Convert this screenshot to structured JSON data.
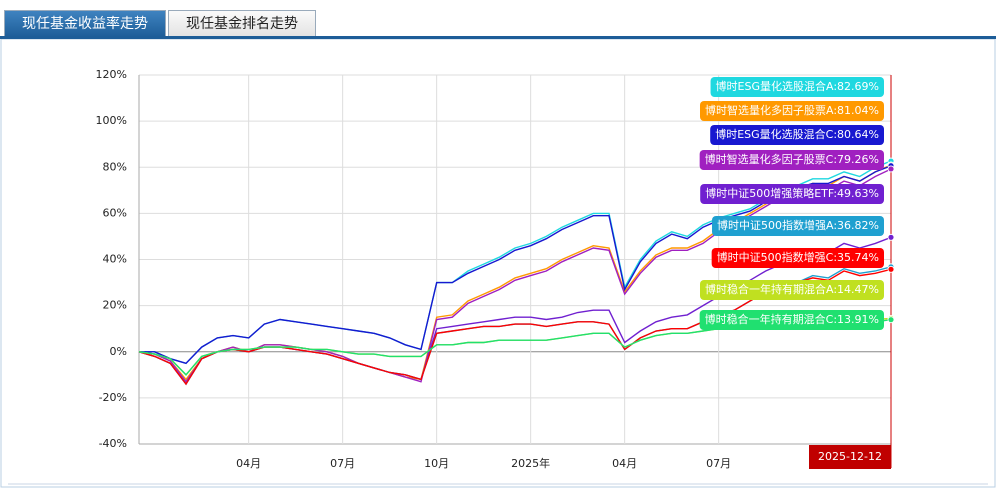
{
  "tabs": [
    {
      "label": "现任基金收益率走势",
      "active": true
    },
    {
      "label": "现任基金排名走势",
      "active": false
    }
  ],
  "chart_data": {
    "type": "line",
    "categories": [
      null,
      null,
      null,
      null,
      null,
      null,
      null,
      "04月",
      null,
      null,
      null,
      null,
      null,
      "07月",
      null,
      null,
      null,
      null,
      null,
      "10月",
      null,
      null,
      null,
      null,
      null,
      "2025年",
      null,
      null,
      null,
      null,
      null,
      "04月",
      null,
      null,
      null,
      null,
      null,
      "07月",
      null,
      null,
      null,
      null,
      null,
      null,
      null,
      null,
      null,
      null,
      "2025-12-12"
    ],
    "ylim": [
      -40,
      120
    ],
    "yticks": [
      {
        "value": -40,
        "label": "-40%"
      },
      {
        "value": -20,
        "label": "-20%"
      },
      {
        "value": 0,
        "label": "0%"
      },
      {
        "value": 20,
        "label": "20%"
      },
      {
        "value": 40,
        "label": "40%"
      },
      {
        "value": 60,
        "label": "60%"
      },
      {
        "value": 80,
        "label": "80%"
      },
      {
        "value": 100,
        "label": "100%"
      },
      {
        "value": 120,
        "label": "120%"
      }
    ],
    "grid": true,
    "series": [
      {
        "name": "博时ESG量化选股混合A",
        "end_label": ":82.69%",
        "color": "#1fd8e0",
        "values": [
          0,
          0,
          -3,
          -5,
          2,
          6,
          7,
          6,
          12,
          14,
          13,
          12,
          11,
          10,
          9,
          8,
          6,
          3,
          1,
          30,
          30,
          35,
          38,
          41,
          45,
          47,
          50,
          54,
          57,
          60,
          60,
          28,
          40,
          48,
          52,
          50,
          55,
          58,
          60,
          62,
          66,
          70,
          72,
          75,
          75,
          78,
          76,
          80,
          82.69
        ]
      },
      {
        "name": "博时智选量化多因子股票A",
        "end_label": ":81.04%",
        "color": "#ff9900",
        "values": [
          0,
          -1,
          -4,
          -12,
          -3,
          0,
          2,
          0,
          3,
          3,
          2,
          1,
          0,
          -2,
          -5,
          -7,
          -9,
          -11,
          -12,
          15,
          16,
          22,
          25,
          28,
          32,
          34,
          36,
          40,
          43,
          46,
          45,
          26,
          35,
          42,
          45,
          45,
          48,
          53,
          56,
          60,
          64,
          68,
          70,
          73,
          72,
          76,
          74,
          78,
          81.04
        ]
      },
      {
        "name": "博时ESG量化选股混合C",
        "end_label": ":80.64%",
        "color": "#1818d0",
        "values": [
          0,
          0,
          -3,
          -5,
          2,
          6,
          7,
          6,
          12,
          14,
          13,
          12,
          11,
          10,
          9,
          8,
          6,
          3,
          1,
          30,
          30,
          34,
          37,
          40,
          44,
          46,
          49,
          53,
          56,
          59,
          59,
          27,
          39,
          47,
          51,
          49,
          54,
          57,
          59,
          61,
          65,
          69,
          71,
          73,
          73,
          76,
          74,
          78,
          80.64
        ]
      },
      {
        "name": "博时智选量化多因子股票C",
        "end_label": ":79.26%",
        "color": "#a020c0",
        "values": [
          0,
          -1,
          -4,
          -13,
          -3,
          0,
          2,
          0,
          3,
          3,
          2,
          1,
          0,
          -2,
          -5,
          -7,
          -9,
          -11,
          -13,
          14,
          15,
          21,
          24,
          27,
          31,
          33,
          35,
          39,
          42,
          45,
          44,
          25,
          34,
          41,
          44,
          44,
          47,
          52,
          55,
          59,
          63,
          67,
          69,
          71,
          70,
          74,
          72,
          76,
          79.26
        ]
      },
      {
        "name": "博时中证500增强策略ETF",
        "end_label": ":49.63%",
        "color": "#7020d0",
        "values": [
          0,
          -2,
          -5,
          -14,
          -3,
          0,
          1,
          0,
          2,
          2,
          1,
          0,
          -1,
          -3,
          -5,
          -7,
          -9,
          -10,
          -12,
          10,
          11,
          12,
          13,
          14,
          15,
          15,
          14,
          15,
          17,
          18,
          18,
          4,
          9,
          13,
          15,
          16,
          20,
          24,
          27,
          31,
          35,
          38,
          40,
          44,
          43,
          47,
          45,
          47,
          49.63
        ]
      },
      {
        "name": "博时中证500指数增强A",
        "end_label": ":36.82%",
        "color": "#1fa0d0",
        "values": [
          0,
          -2,
          -5,
          -14,
          -3,
          0,
          1,
          0,
          2,
          2,
          1,
          0,
          -1,
          -3,
          -5,
          -7,
          -9,
          -10,
          -12,
          8,
          9,
          10,
          11,
          11,
          12,
          12,
          11,
          12,
          13,
          13,
          12,
          1,
          6,
          9,
          10,
          10,
          13,
          16,
          18,
          22,
          26,
          28,
          30,
          33,
          32,
          36,
          34,
          35,
          36.82
        ]
      },
      {
        "name": "博时中证500指数增强C",
        "end_label": ":35.74%",
        "color": "#ff0000",
        "values": [
          0,
          -2,
          -5,
          -14,
          -3,
          0,
          1,
          0,
          2,
          2,
          1,
          0,
          -1,
          -3,
          -5,
          -7,
          -9,
          -10,
          -12,
          8,
          9,
          10,
          11,
          11,
          12,
          12,
          11,
          12,
          13,
          13,
          12,
          1,
          6,
          9,
          10,
          10,
          13,
          16,
          18,
          22,
          26,
          28,
          30,
          32,
          31,
          35,
          33,
          34,
          35.74
        ]
      },
      {
        "name": "博时稳合一年持有期混合A",
        "end_label": ":14.47%",
        "color": "#c0e020",
        "values": [
          0,
          -1,
          -3,
          -10,
          -2,
          0,
          1,
          1,
          2,
          2,
          2,
          1,
          1,
          0,
          -1,
          -1,
          -2,
          -2,
          -2,
          3,
          3,
          4,
          4,
          5,
          5,
          5,
          5,
          6,
          7,
          8,
          8,
          2,
          5,
          7,
          8,
          8,
          9,
          10,
          10,
          11,
          11,
          12,
          12,
          13,
          13,
          14,
          13,
          14,
          14.47
        ]
      },
      {
        "name": "博时稳合一年持有期混合C",
        "end_label": ":13.91%",
        "color": "#20e070",
        "values": [
          0,
          -1,
          -3,
          -10,
          -2,
          0,
          1,
          1,
          2,
          2,
          2,
          1,
          1,
          0,
          -1,
          -1,
          -2,
          -2,
          -2,
          3,
          3,
          4,
          4,
          5,
          5,
          5,
          5,
          6,
          7,
          8,
          8,
          2,
          5,
          7,
          8,
          8,
          9,
          10,
          10,
          11,
          11,
          12,
          12,
          13,
          13,
          13,
          13,
          13,
          13.91
        ]
      }
    ]
  }
}
